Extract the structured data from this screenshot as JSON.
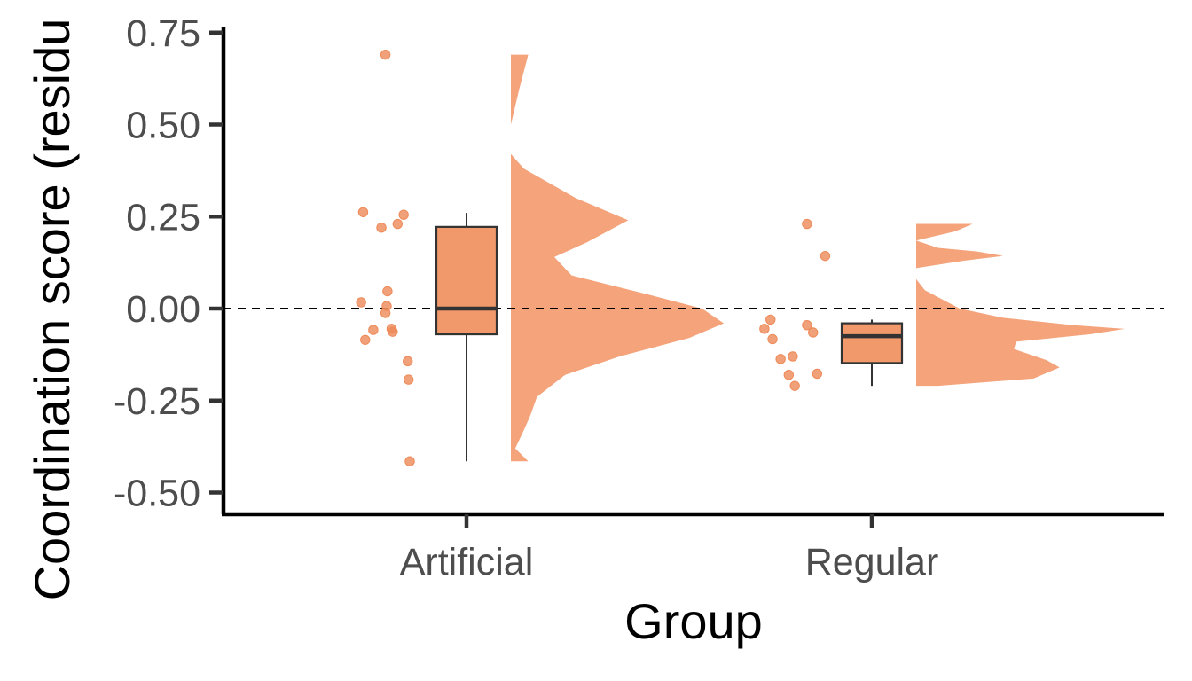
{
  "chart_data": {
    "type": "raincloud",
    "title": "",
    "xlabel": "Group",
    "ylabel": "Coordination score (residu",
    "categories": [
      "Artificial",
      "Regular"
    ],
    "ylim": [
      -0.555,
      0.755
    ],
    "yticks": [
      0.75,
      0.5,
      0.25,
      0.0,
      -0.25,
      -0.5
    ],
    "ytick_labels": [
      "0.75",
      "0.50",
      "0.25",
      "0.00",
      "-0.25",
      "-0.50"
    ],
    "reference_line": {
      "y": 0.0,
      "style": "dashed",
      "color": "#000000"
    },
    "fill_color": "#f4a37b",
    "box_color": "#f2996b",
    "point_color": "#ee8a58",
    "line_color": "#333333",
    "grid": false,
    "legend": "none",
    "groups": [
      {
        "name": "Artificial",
        "points": [
          {
            "jitter": -0.2,
            "y": 0.69
          },
          {
            "jitter": -0.255,
            "y": 0.262
          },
          {
            "jitter": -0.155,
            "y": 0.255
          },
          {
            "jitter": -0.21,
            "y": 0.22
          },
          {
            "jitter": -0.17,
            "y": 0.23
          },
          {
            "jitter": -0.195,
            "y": 0.047
          },
          {
            "jitter": -0.26,
            "y": 0.017
          },
          {
            "jitter": -0.197,
            "y": 0.007
          },
          {
            "jitter": -0.2,
            "y": -0.012
          },
          {
            "jitter": -0.185,
            "y": -0.055
          },
          {
            "jitter": -0.23,
            "y": -0.058
          },
          {
            "jitter": -0.182,
            "y": -0.063
          },
          {
            "jitter": -0.25,
            "y": -0.085
          },
          {
            "jitter": -0.145,
            "y": -0.143
          },
          {
            "jitter": -0.143,
            "y": -0.193
          },
          {
            "jitter": -0.14,
            "y": -0.415
          }
        ],
        "box": {
          "whisker_low": -0.415,
          "q1": -0.07,
          "median": 0.0,
          "q3": 0.222,
          "whisker_high": 0.26
        },
        "density": {
          "y": [
            0.69,
            0.6,
            0.5,
            0.42,
            0.38,
            0.3,
            0.24,
            0.18,
            0.14,
            0.09,
            0.04,
            0.0,
            -0.04,
            -0.08,
            -0.13,
            -0.18,
            -0.24,
            -0.29,
            -0.33,
            -0.38,
            -0.415
          ],
          "d": [
            0.08,
            0.04,
            0.0,
            0.0,
            0.06,
            0.3,
            0.54,
            0.35,
            0.2,
            0.28,
            0.62,
            0.88,
            0.98,
            0.82,
            0.5,
            0.25,
            0.12,
            0.09,
            0.06,
            0.02,
            0.08
          ]
        }
      },
      {
        "name": "Regular",
        "points": [
          {
            "jitter": -0.16,
            "y": 0.23
          },
          {
            "jitter": -0.115,
            "y": 0.143
          },
          {
            "jitter": -0.25,
            "y": -0.03
          },
          {
            "jitter": -0.16,
            "y": -0.045
          },
          {
            "jitter": -0.265,
            "y": -0.055
          },
          {
            "jitter": -0.145,
            "y": -0.065
          },
          {
            "jitter": -0.245,
            "y": -0.083
          },
          {
            "jitter": -0.195,
            "y": -0.13
          },
          {
            "jitter": -0.225,
            "y": -0.137
          },
          {
            "jitter": -0.205,
            "y": -0.18
          },
          {
            "jitter": -0.135,
            "y": -0.177
          },
          {
            "jitter": -0.19,
            "y": -0.21
          }
        ],
        "box": {
          "whisker_low": -0.21,
          "q1": -0.148,
          "median": -0.075,
          "q3": -0.04,
          "whisker_high": -0.03
        },
        "density": {
          "y": [
            0.23,
            0.21,
            0.185,
            0.165,
            0.155,
            0.143,
            0.13,
            0.11,
            0.08,
            0.05,
            0.025,
            0.0,
            -0.025,
            -0.045,
            -0.055,
            -0.07,
            -0.09,
            -0.11,
            -0.14,
            -0.16,
            -0.19,
            -0.21
          ],
          "d": [
            0.26,
            0.18,
            0.0,
            0.1,
            0.28,
            0.4,
            0.22,
            0.0,
            0.0,
            0.04,
            0.12,
            0.2,
            0.4,
            0.72,
            0.96,
            0.8,
            0.46,
            0.45,
            0.6,
            0.66,
            0.54,
            0.1
          ]
        }
      }
    ]
  }
}
